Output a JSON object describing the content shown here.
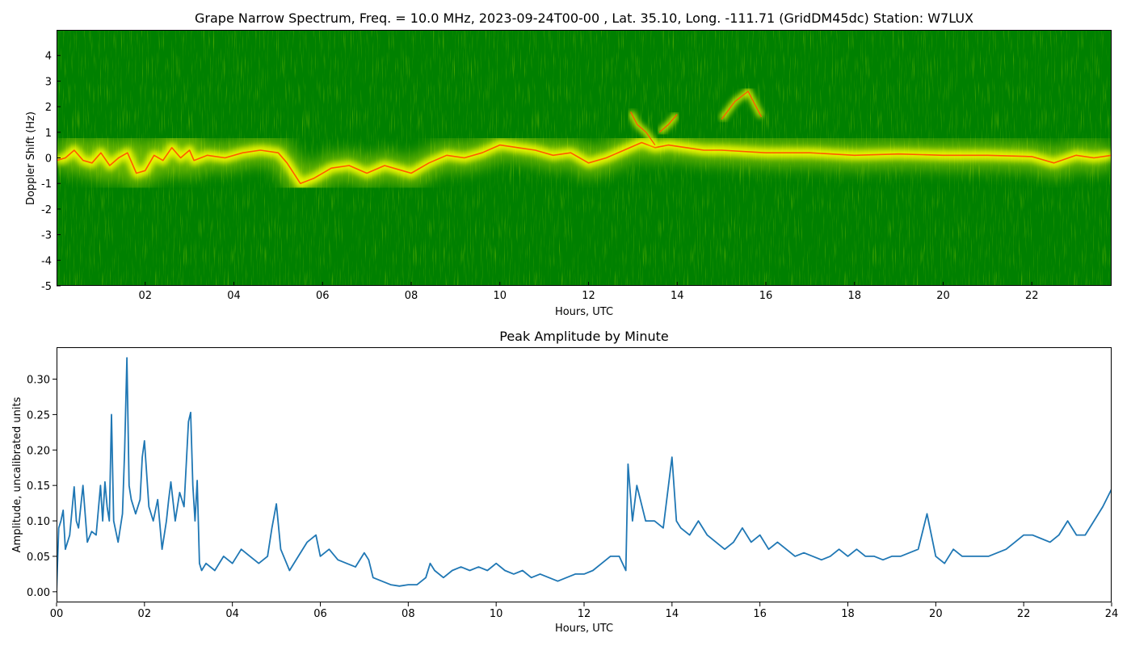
{
  "colors": {
    "spectrum_background": "#008000",
    "spectrum_glow": "#c8e600",
    "spectrum_core": "#ffff00",
    "spectrum_peak": "#ff5a00",
    "amplitude_line": "#1f77b4"
  },
  "chart_data": [
    {
      "type": "heatmap",
      "title": "Grape Narrow Spectrum, Freq. = 10.0 MHz, 2023-09-24T00-00 , Lat.  35.10, Long. -111.71 (GridDM45dc) Station: W7LUX",
      "xlabel": "Hours, UTC",
      "ylabel": "Doppler Shift (Hz)",
      "xlim": [
        0,
        23.8
      ],
      "ylim": [
        -5,
        5
      ],
      "xticks": [
        "02",
        "04",
        "06",
        "08",
        "10",
        "12",
        "14",
        "16",
        "18",
        "20",
        "22"
      ],
      "xtick_values": [
        2,
        4,
        6,
        8,
        10,
        12,
        14,
        16,
        18,
        20,
        22
      ],
      "yticks": [
        "-5",
        "-4",
        "-3",
        "-2",
        "-1",
        "0",
        "1",
        "2",
        "3",
        "4"
      ],
      "ytick_values": [
        -5,
        -4,
        -3,
        -2,
        -1,
        0,
        1,
        2,
        3,
        4
      ],
      "colorscale": "green (low) to yellow to red (high)",
      "doppler_trace": {
        "hours": [
          0,
          0.2,
          0.4,
          0.6,
          0.8,
          1.0,
          1.2,
          1.4,
          1.6,
          1.8,
          2.0,
          2.2,
          2.4,
          2.6,
          2.8,
          3.0,
          3.1,
          3.4,
          3.8,
          4.2,
          4.6,
          5.0,
          5.2,
          5.5,
          5.8,
          6.2,
          6.6,
          7.0,
          7.4,
          7.8,
          8.0,
          8.4,
          8.8,
          9.2,
          9.6,
          10.0,
          10.4,
          10.8,
          11.2,
          11.6,
          12.0,
          12.4,
          12.8,
          13.2,
          13.5,
          13.8,
          14.2,
          14.6,
          15.0,
          16.0,
          17.0,
          18.0,
          19.0,
          20.0,
          21.0,
          22.0,
          22.5,
          23.0,
          23.4,
          23.8
        ],
        "doppler_hz": [
          -0.1,
          0.0,
          0.3,
          -0.1,
          -0.2,
          0.2,
          -0.3,
          0.0,
          0.2,
          -0.6,
          -0.5,
          0.1,
          -0.1,
          0.4,
          0.0,
          0.3,
          -0.1,
          0.1,
          0.0,
          0.2,
          0.3,
          0.2,
          -0.2,
          -1.0,
          -0.8,
          -0.4,
          -0.3,
          -0.6,
          -0.3,
          -0.5,
          -0.6,
          -0.2,
          0.1,
          0.0,
          0.2,
          0.5,
          0.4,
          0.3,
          0.1,
          0.2,
          -0.2,
          0.0,
          0.3,
          0.6,
          0.4,
          0.5,
          0.4,
          0.3,
          0.3,
          0.2,
          0.2,
          0.1,
          0.15,
          0.1,
          0.1,
          0.05,
          -0.2,
          0.1,
          0.0,
          0.1
        ]
      },
      "secondary_traces": [
        {
          "hours": [
            12.95,
            13.1,
            13.3,
            13.5
          ],
          "doppler_hz": [
            1.8,
            1.3,
            1.0,
            0.5
          ]
        },
        {
          "hours": [
            13.6,
            13.8,
            14.0
          ],
          "doppler_hz": [
            1.0,
            1.3,
            1.7
          ]
        },
        {
          "hours": [
            15.0,
            15.3,
            15.6,
            15.9
          ],
          "doppler_hz": [
            1.5,
            2.2,
            2.6,
            1.6
          ]
        }
      ]
    },
    {
      "type": "line",
      "title": "Peak Amplitude by Minute",
      "xlabel": "Hours, UTC",
      "ylabel": "Amplitude, uncalibrated units",
      "xlim": [
        0,
        24
      ],
      "ylim": [
        -0.015,
        0.345
      ],
      "xticks": [
        "00",
        "02",
        "04",
        "06",
        "08",
        "10",
        "12",
        "14",
        "16",
        "18",
        "20",
        "22",
        "24"
      ],
      "xtick_values": [
        0,
        2,
        4,
        6,
        8,
        10,
        12,
        14,
        16,
        18,
        20,
        22,
        24
      ],
      "yticks": [
        "0.00",
        "0.05",
        "0.10",
        "0.15",
        "0.20",
        "0.25",
        "0.30"
      ],
      "ytick_values": [
        0,
        0.05,
        0.1,
        0.15,
        0.2,
        0.25,
        0.3
      ],
      "x": [
        0,
        0.05,
        0.1,
        0.15,
        0.2,
        0.3,
        0.4,
        0.45,
        0.5,
        0.6,
        0.7,
        0.8,
        0.9,
        1.0,
        1.05,
        1.1,
        1.15,
        1.2,
        1.25,
        1.3,
        1.4,
        1.5,
        1.55,
        1.6,
        1.65,
        1.7,
        1.8,
        1.9,
        1.95,
        2.0,
        2.1,
        2.2,
        2.3,
        2.4,
        2.5,
        2.55,
        2.6,
        2.7,
        2.8,
        2.9,
        3.0,
        3.05,
        3.1,
        3.15,
        3.2,
        3.25,
        3.3,
        3.4,
        3.6,
        3.8,
        4.0,
        4.2,
        4.4,
        4.6,
        4.8,
        4.9,
        5.0,
        5.1,
        5.3,
        5.5,
        5.7,
        5.9,
        6.0,
        6.2,
        6.4,
        6.6,
        6.8,
        7.0,
        7.1,
        7.2,
        7.4,
        7.6,
        7.8,
        8.0,
        8.2,
        8.4,
        8.5,
        8.6,
        8.8,
        9.0,
        9.2,
        9.4,
        9.6,
        9.8,
        10.0,
        10.2,
        10.4,
        10.6,
        10.8,
        11.0,
        11.2,
        11.4,
        11.6,
        11.8,
        12.0,
        12.2,
        12.4,
        12.6,
        12.8,
        12.95,
        13.0,
        13.1,
        13.2,
        13.4,
        13.6,
        13.8,
        14.0,
        14.1,
        14.2,
        14.4,
        14.6,
        14.8,
        15.0,
        15.2,
        15.4,
        15.6,
        15.8,
        16.0,
        16.2,
        16.4,
        16.6,
        16.8,
        17.0,
        17.2,
        17.4,
        17.6,
        17.8,
        18.0,
        18.2,
        18.4,
        18.6,
        18.8,
        19.0,
        19.2,
        19.4,
        19.6,
        19.8,
        20.0,
        20.2,
        20.4,
        20.6,
        20.8,
        21.0,
        21.2,
        21.4,
        21.6,
        21.8,
        22.0,
        22.2,
        22.4,
        22.6,
        22.8,
        23.0,
        23.2,
        23.4,
        23.6,
        23.8,
        24.0
      ],
      "y": [
        0.0,
        0.09,
        0.1,
        0.115,
        0.06,
        0.08,
        0.148,
        0.1,
        0.09,
        0.15,
        0.07,
        0.085,
        0.08,
        0.15,
        0.1,
        0.155,
        0.12,
        0.1,
        0.25,
        0.1,
        0.07,
        0.11,
        0.2,
        0.33,
        0.15,
        0.13,
        0.11,
        0.13,
        0.19,
        0.213,
        0.12,
        0.1,
        0.13,
        0.06,
        0.1,
        0.13,
        0.155,
        0.1,
        0.14,
        0.12,
        0.24,
        0.253,
        0.15,
        0.1,
        0.157,
        0.04,
        0.03,
        0.04,
        0.03,
        0.05,
        0.04,
        0.06,
        0.05,
        0.04,
        0.05,
        0.09,
        0.124,
        0.06,
        0.03,
        0.05,
        0.07,
        0.08,
        0.05,
        0.06,
        0.045,
        0.04,
        0.035,
        0.055,
        0.045,
        0.02,
        0.015,
        0.01,
        0.008,
        0.01,
        0.01,
        0.02,
        0.04,
        0.03,
        0.02,
        0.03,
        0.035,
        0.03,
        0.035,
        0.03,
        0.04,
        0.03,
        0.025,
        0.03,
        0.02,
        0.025,
        0.02,
        0.015,
        0.02,
        0.025,
        0.025,
        0.03,
        0.04,
        0.05,
        0.05,
        0.03,
        0.18,
        0.1,
        0.15,
        0.1,
        0.1,
        0.09,
        0.19,
        0.1,
        0.09,
        0.08,
        0.1,
        0.08,
        0.07,
        0.06,
        0.07,
        0.09,
        0.07,
        0.08,
        0.06,
        0.07,
        0.06,
        0.05,
        0.055,
        0.05,
        0.045,
        0.05,
        0.06,
        0.05,
        0.06,
        0.05,
        0.05,
        0.045,
        0.05,
        0.05,
        0.055,
        0.06,
        0.11,
        0.05,
        0.04,
        0.06,
        0.05,
        0.05,
        0.05,
        0.05,
        0.055,
        0.06,
        0.07,
        0.08,
        0.08,
        0.075,
        0.07,
        0.08,
        0.1,
        0.08,
        0.08,
        0.1,
        0.12,
        0.145
      ]
    }
  ]
}
